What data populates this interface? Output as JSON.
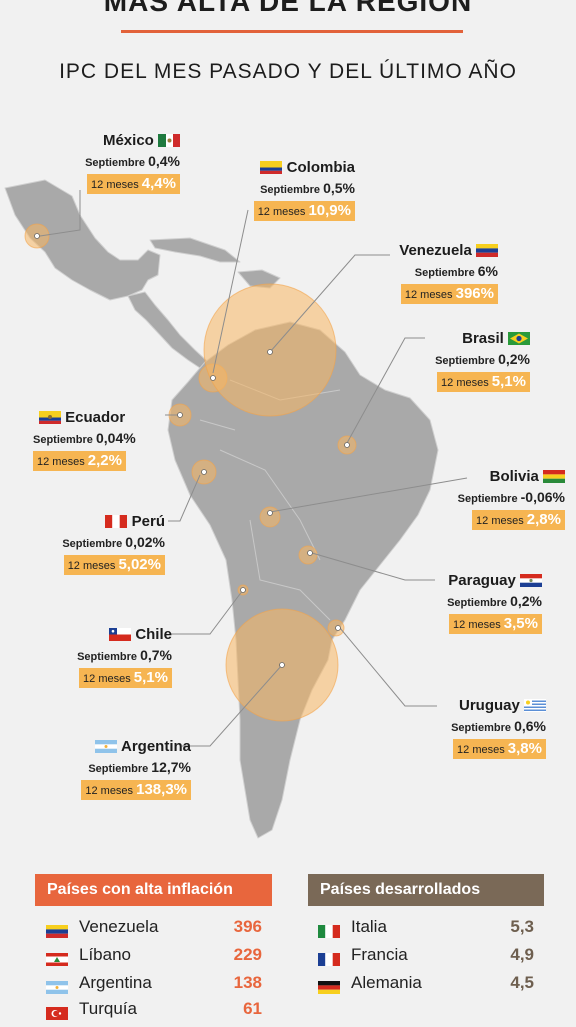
{
  "header": {
    "title": "MÁS ALTA DE LA REGIÓN",
    "subtitle": "IPC DEL MES PASADO Y DEL ÚLTIMO AÑO"
  },
  "legend": {
    "month_label": "Septiembre",
    "year_label": "12 meses"
  },
  "countries": [
    {
      "name": "México",
      "septiembre": "0,4%",
      "doce_meses": "4,4%"
    },
    {
      "name": "Colombia",
      "septiembre": "0,5%",
      "doce_meses": "10,9%"
    },
    {
      "name": "Venezuela",
      "septiembre": "6%",
      "doce_meses": "396%"
    },
    {
      "name": "Brasil",
      "septiembre": "0,2%",
      "doce_meses": "5,1%"
    },
    {
      "name": "Ecuador",
      "septiembre": "0,04%",
      "doce_meses": "2,2%"
    },
    {
      "name": "Bolivia",
      "septiembre": "-0,06%",
      "doce_meses": "2,8%"
    },
    {
      "name": "Perú",
      "septiembre": "0,02%",
      "doce_meses": "5,02%"
    },
    {
      "name": "Paraguay",
      "septiembre": "0,2%",
      "doce_meses": "3,5%"
    },
    {
      "name": "Chile",
      "septiembre": "0,7%",
      "doce_meses": "5,1%"
    },
    {
      "name": "Uruguay",
      "septiembre": "0,6%",
      "doce_meses": "3,8%"
    },
    {
      "name": "Argentina",
      "septiembre": "12,7%",
      "doce_meses": "138,3%"
    }
  ],
  "panels": {
    "high": {
      "title": "Países con alta inflación",
      "color": "#e8663d",
      "value_color": "#e8663d",
      "rows": [
        {
          "name": "Venezuela",
          "value": "396"
        },
        {
          "name": "Líbano",
          "value": "229"
        },
        {
          "name": "Argentina",
          "value": "138"
        },
        {
          "name": "Turquía",
          "value": "61"
        }
      ]
    },
    "developed": {
      "title": "Países desarrollados",
      "color": "#7a6957",
      "value_color": "#6e5f4f",
      "rows": [
        {
          "name": "Italia",
          "value": "5,3"
        },
        {
          "name": "Francia",
          "value": "4,9"
        },
        {
          "name": "Alemania",
          "value": "4,5"
        }
      ]
    }
  },
  "colors": {
    "accent": "#e2623a",
    "highlight": "#f6b552",
    "land": "#a9a9a9",
    "bubble": "#f8b763",
    "background": "#f1f1f1"
  }
}
